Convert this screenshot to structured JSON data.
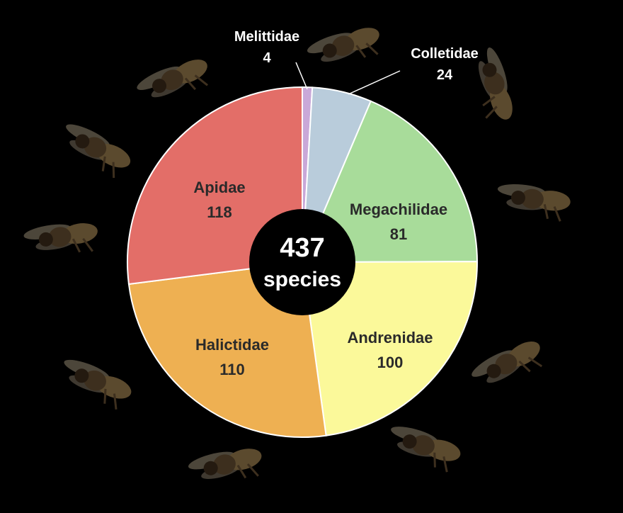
{
  "chart_data": {
    "type": "pie",
    "center_label": {
      "value": "437",
      "unit": "species"
    },
    "slices": [
      {
        "name": "Melittidae",
        "value": 4,
        "color": "#c9a8d8"
      },
      {
        "name": "Colletidae",
        "value": 24,
        "color": "#b9ccdb"
      },
      {
        "name": "Megachilidae",
        "value": 81,
        "color": "#a8dc9a"
      },
      {
        "name": "Andrenidae",
        "value": 100,
        "color": "#fbf99a"
      },
      {
        "name": "Halictidae",
        "value": 110,
        "color": "#eeb052"
      },
      {
        "name": "Apidae",
        "value": 118,
        "color": "#e36e68"
      }
    ],
    "bee_images": [
      {
        "icon": "bee-photo",
        "family_hint": "Melittidae"
      },
      {
        "icon": "bee-photo",
        "family_hint": "Colletidae"
      },
      {
        "icon": "bee-photo",
        "family_hint": "Megachilidae"
      },
      {
        "icon": "bee-photo",
        "family_hint": "Andrenidae"
      },
      {
        "icon": "bee-photo",
        "family_hint": "Andrenidae"
      },
      {
        "icon": "bee-photo",
        "family_hint": "Halictidae"
      },
      {
        "icon": "bee-photo",
        "family_hint": "Halictidae"
      },
      {
        "icon": "bee-photo",
        "family_hint": "Apidae"
      },
      {
        "icon": "bee-photo",
        "family_hint": "Apidae"
      },
      {
        "icon": "bee-photo",
        "family_hint": "Apidae"
      }
    ]
  }
}
